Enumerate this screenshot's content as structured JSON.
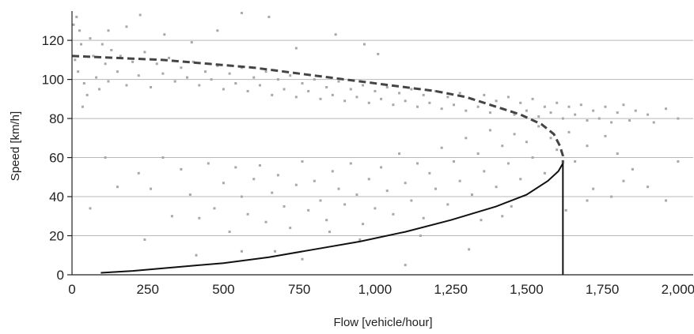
{
  "chart_data": {
    "type": "scatter",
    "title": "",
    "xlabel": "Flow [vehicle/hour]",
    "ylabel": "Speed [km/h]",
    "xlim": [
      0,
      2050
    ],
    "ylim": [
      0,
      135
    ],
    "x_ticks": [
      "0",
      "250",
      "500",
      "750",
      "1,000",
      "1,250",
      "1,500",
      "1,750",
      "2,000"
    ],
    "x_tick_values": [
      0,
      250,
      500,
      750,
      1000,
      1250,
      1500,
      1750,
      2000
    ],
    "y_ticks": [
      "0",
      "20",
      "40",
      "60",
      "80",
      "100",
      "120"
    ],
    "y_tick_values": [
      0,
      20,
      40,
      60,
      80,
      100,
      120
    ],
    "grid": "horizontal",
    "colors": {
      "points": "#a8a8a8",
      "curve": "#111111",
      "dashed_curve": "#444444",
      "grid": "#b8b8b8"
    },
    "series": [
      {
        "kind": "scatter",
        "description": "observed flow-speed pairs (dense cloud, representative sample)",
        "points": [
          [
            5,
            128
          ],
          [
            15,
            132
          ],
          [
            25,
            125
          ],
          [
            30,
            118
          ],
          [
            10,
            110
          ],
          [
            20,
            104
          ],
          [
            40,
            98
          ],
          [
            50,
            92
          ],
          [
            35,
            86
          ],
          [
            60,
            121
          ],
          [
            70,
            112
          ],
          [
            80,
            101
          ],
          [
            90,
            95
          ],
          [
            100,
            118
          ],
          [
            110,
            108
          ],
          [
            120,
            99
          ],
          [
            130,
            115
          ],
          [
            150,
            104
          ],
          [
            160,
            112
          ],
          [
            180,
            97
          ],
          [
            200,
            109
          ],
          [
            220,
            102
          ],
          [
            240,
            114
          ],
          [
            260,
            96
          ],
          [
            280,
            108
          ],
          [
            300,
            103
          ],
          [
            320,
            111
          ],
          [
            340,
            99
          ],
          [
            360,
            106
          ],
          [
            380,
            101
          ],
          [
            400,
            109
          ],
          [
            420,
            97
          ],
          [
            440,
            104
          ],
          [
            460,
            100
          ],
          [
            480,
            107
          ],
          [
            500,
            95
          ],
          [
            520,
            103
          ],
          [
            540,
            98
          ],
          [
            560,
            106
          ],
          [
            580,
            94
          ],
          [
            600,
            101
          ],
          [
            620,
            97
          ],
          [
            640,
            104
          ],
          [
            660,
            92
          ],
          [
            680,
            100
          ],
          [
            700,
            95
          ],
          [
            720,
            102
          ],
          [
            740,
            91
          ],
          [
            760,
            98
          ],
          [
            780,
            94
          ],
          [
            800,
            100
          ],
          [
            820,
            90
          ],
          [
            840,
            96
          ],
          [
            860,
            92
          ],
          [
            880,
            99
          ],
          [
            900,
            89
          ],
          [
            920,
            95
          ],
          [
            940,
            91
          ],
          [
            960,
            97
          ],
          [
            980,
            88
          ],
          [
            1000,
            94
          ],
          [
            1020,
            90
          ],
          [
            1040,
            96
          ],
          [
            1060,
            87
          ],
          [
            1080,
            93
          ],
          [
            1100,
            89
          ],
          [
            1120,
            95
          ],
          [
            1140,
            86
          ],
          [
            1160,
            92
          ],
          [
            1180,
            88
          ],
          [
            1200,
            94
          ],
          [
            1220,
            85
          ],
          [
            1240,
            91
          ],
          [
            1260,
            87
          ],
          [
            1280,
            93
          ],
          [
            1300,
            84
          ],
          [
            1320,
            90
          ],
          [
            1340,
            86
          ],
          [
            1360,
            92
          ],
          [
            1380,
            83
          ],
          [
            1400,
            89
          ],
          [
            1420,
            85
          ],
          [
            1440,
            91
          ],
          [
            1460,
            82
          ],
          [
            1480,
            88
          ],
          [
            1500,
            84
          ],
          [
            1520,
            90
          ],
          [
            1540,
            81
          ],
          [
            1560,
            86
          ],
          [
            1580,
            83
          ],
          [
            1600,
            88
          ],
          [
            1620,
            80
          ],
          [
            1640,
            86
          ],
          [
            1660,
            82
          ],
          [
            1680,
            87
          ],
          [
            1700,
            79
          ],
          [
            1720,
            84
          ],
          [
            1740,
            80
          ],
          [
            1760,
            86
          ],
          [
            1780,
            78
          ],
          [
            1800,
            83
          ],
          [
            1820,
            87
          ],
          [
            1840,
            79
          ],
          [
            1860,
            84
          ],
          [
            1900,
            82
          ],
          [
            1920,
            78
          ],
          [
            1960,
            85
          ],
          [
            2000,
            80
          ],
          [
            225,
            133
          ],
          [
            480,
            125
          ],
          [
            560,
            134
          ],
          [
            650,
            132
          ],
          [
            870,
            123
          ],
          [
            965,
            118
          ],
          [
            1010,
            113
          ],
          [
            305,
            123
          ],
          [
            180,
            127
          ],
          [
            395,
            119
          ],
          [
            120,
            125
          ],
          [
            740,
            116
          ],
          [
            150,
            45
          ],
          [
            220,
            52
          ],
          [
            240,
            18
          ],
          [
            260,
            44
          ],
          [
            300,
            60
          ],
          [
            330,
            30
          ],
          [
            360,
            54
          ],
          [
            390,
            41
          ],
          [
            420,
            29
          ],
          [
            450,
            57
          ],
          [
            470,
            34
          ],
          [
            500,
            47
          ],
          [
            520,
            22
          ],
          [
            540,
            55
          ],
          [
            560,
            40
          ],
          [
            580,
            31
          ],
          [
            600,
            49
          ],
          [
            620,
            56
          ],
          [
            640,
            27
          ],
          [
            660,
            42
          ],
          [
            680,
            51
          ],
          [
            700,
            35
          ],
          [
            720,
            24
          ],
          [
            740,
            46
          ],
          [
            760,
            58
          ],
          [
            780,
            33
          ],
          [
            800,
            48
          ],
          [
            820,
            38
          ],
          [
            840,
            28
          ],
          [
            860,
            53
          ],
          [
            880,
            44
          ],
          [
            900,
            36
          ],
          [
            920,
            57
          ],
          [
            940,
            41
          ],
          [
            960,
            26
          ],
          [
            980,
            49
          ],
          [
            1000,
            34
          ],
          [
            1020,
            55
          ],
          [
            1040,
            43
          ],
          [
            1060,
            31
          ],
          [
            1080,
            62
          ],
          [
            1100,
            47
          ],
          [
            1120,
            38
          ],
          [
            1140,
            57
          ],
          [
            1160,
            29
          ],
          [
            1180,
            52
          ],
          [
            1200,
            44
          ],
          [
            1220,
            65
          ],
          [
            1240,
            36
          ],
          [
            1260,
            58
          ],
          [
            1280,
            48
          ],
          [
            1300,
            70
          ],
          [
            1320,
            41
          ],
          [
            1340,
            62
          ],
          [
            1360,
            53
          ],
          [
            1380,
            74
          ],
          [
            1400,
            45
          ],
          [
            1420,
            66
          ],
          [
            1440,
            57
          ],
          [
            1460,
            72
          ],
          [
            1480,
            49
          ],
          [
            1500,
            68
          ],
          [
            1520,
            60
          ],
          [
            1540,
            76
          ],
          [
            1560,
            52
          ],
          [
            1580,
            70
          ],
          [
            1600,
            64
          ],
          [
            1640,
            73
          ],
          [
            1660,
            58
          ],
          [
            1700,
            66
          ],
          [
            1720,
            44
          ],
          [
            1760,
            71
          ],
          [
            1780,
            40
          ],
          [
            1800,
            62
          ],
          [
            1820,
            48
          ],
          [
            1850,
            54
          ],
          [
            1900,
            45
          ],
          [
            1960,
            38
          ],
          [
            2000,
            58
          ],
          [
            60,
            34
          ],
          [
            110,
            60
          ],
          [
            410,
            10
          ],
          [
            560,
            12
          ],
          [
            670,
            12
          ],
          [
            760,
            8
          ],
          [
            1100,
            5
          ],
          [
            1310,
            13
          ],
          [
            850,
            22
          ],
          [
            950,
            18
          ],
          [
            1150,
            20
          ],
          [
            1350,
            28
          ],
          [
            1420,
            30
          ],
          [
            1450,
            35
          ],
          [
            1630,
            33
          ],
          [
            1700,
            38
          ]
        ]
      },
      {
        "kind": "line",
        "style": "solid",
        "description": "congested branch of fitted flow-speed curve",
        "points": [
          [
            95,
            1
          ],
          [
            200,
            2
          ],
          [
            350,
            4
          ],
          [
            500,
            6
          ],
          [
            650,
            9
          ],
          [
            800,
            13
          ],
          [
            950,
            17
          ],
          [
            1100,
            22
          ],
          [
            1250,
            28
          ],
          [
            1400,
            35
          ],
          [
            1500,
            41
          ],
          [
            1570,
            48
          ],
          [
            1605,
            53
          ],
          [
            1620,
            57
          ]
        ]
      },
      {
        "kind": "line",
        "style": "dashed",
        "description": "free-flow branch of fitted flow-speed curve",
        "points": [
          [
            0,
            112
          ],
          [
            150,
            111
          ],
          [
            300,
            110
          ],
          [
            450,
            108
          ],
          [
            600,
            106
          ],
          [
            750,
            103
          ],
          [
            900,
            100
          ],
          [
            1050,
            97
          ],
          [
            1200,
            94
          ],
          [
            1300,
            91
          ],
          [
            1400,
            86
          ],
          [
            1480,
            82
          ],
          [
            1550,
            77
          ],
          [
            1590,
            72
          ],
          [
            1610,
            66
          ],
          [
            1620,
            61
          ],
          [
            1620,
            57
          ]
        ]
      },
      {
        "kind": "vertical-line",
        "description": "capacity marker",
        "x": 1620,
        "y_range": [
          0,
          57
        ]
      }
    ]
  }
}
